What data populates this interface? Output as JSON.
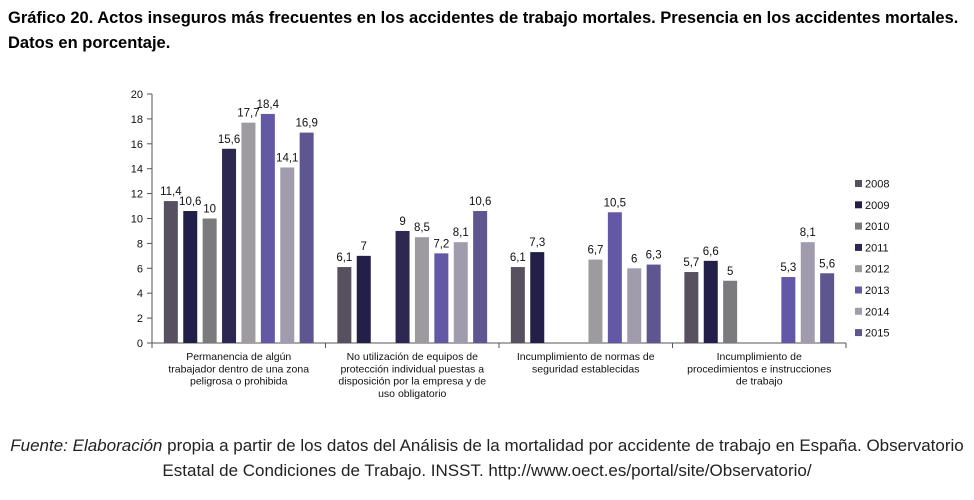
{
  "title": "Gráfico 20. Actos inseguros más frecuentes en los accidentes de trabajo mortales. Presencia en los accidentes mortales. Datos en porcentaje.",
  "source": {
    "prefix": "Fuente: Elaboración",
    "text": " propia a partir de los datos del Análisis de la mortalidad por accidente de trabajo en España. Observatorio Estatal de Condiciones de Trabajo. INSST. http://www.oect.es/portal/site/Observatorio/"
  },
  "chart_data": {
    "type": "bar",
    "title": "",
    "xlabel": "",
    "ylabel": "",
    "ylim": [
      0,
      20
    ],
    "yticks": [
      0,
      2,
      4,
      6,
      8,
      10,
      12,
      14,
      16,
      18,
      20
    ],
    "grid": false,
    "legend_position": "right",
    "categories": [
      [
        "Permanencia de algún",
        "trabajador dentro de una zona",
        "peligrosa o prohibida"
      ],
      [
        "No utilización de equipos de",
        "protección individual puestas a",
        "disposición por la empresa y de",
        "uso obligatorio"
      ],
      [
        "Incumplimiento de normas de",
        "seguridad establecidas"
      ],
      [
        "Incumplimiento de",
        "procedimientos e instrucciones",
        "de trabajo"
      ]
    ],
    "series": [
      {
        "name": "2008",
        "color": "#57505f",
        "values": [
          11.4,
          6.1,
          6.1,
          5.7
        ]
      },
      {
        "name": "2009",
        "color": "#221f48",
        "values": [
          10.6,
          7,
          7.3,
          6.6
        ]
      },
      {
        "name": "2010",
        "color": "#7b7b7d",
        "values": [
          10,
          null,
          null,
          5
        ]
      },
      {
        "name": "2011",
        "color": "#2c2852",
        "values": [
          15.6,
          9,
          null,
          null
        ]
      },
      {
        "name": "2012",
        "color": "#9d9b9f",
        "values": [
          17.7,
          8.5,
          6.7,
          null
        ]
      },
      {
        "name": "2013",
        "color": "#6258a6",
        "values": [
          18.4,
          7.2,
          10.5,
          5.3
        ]
      },
      {
        "name": "2014",
        "color": "#a09cad",
        "values": [
          14.1,
          8.1,
          6,
          8.1
        ]
      },
      {
        "name": "2015",
        "color": "#5d5690",
        "values": [
          16.9,
          10.6,
          6.3,
          5.6
        ]
      }
    ]
  }
}
